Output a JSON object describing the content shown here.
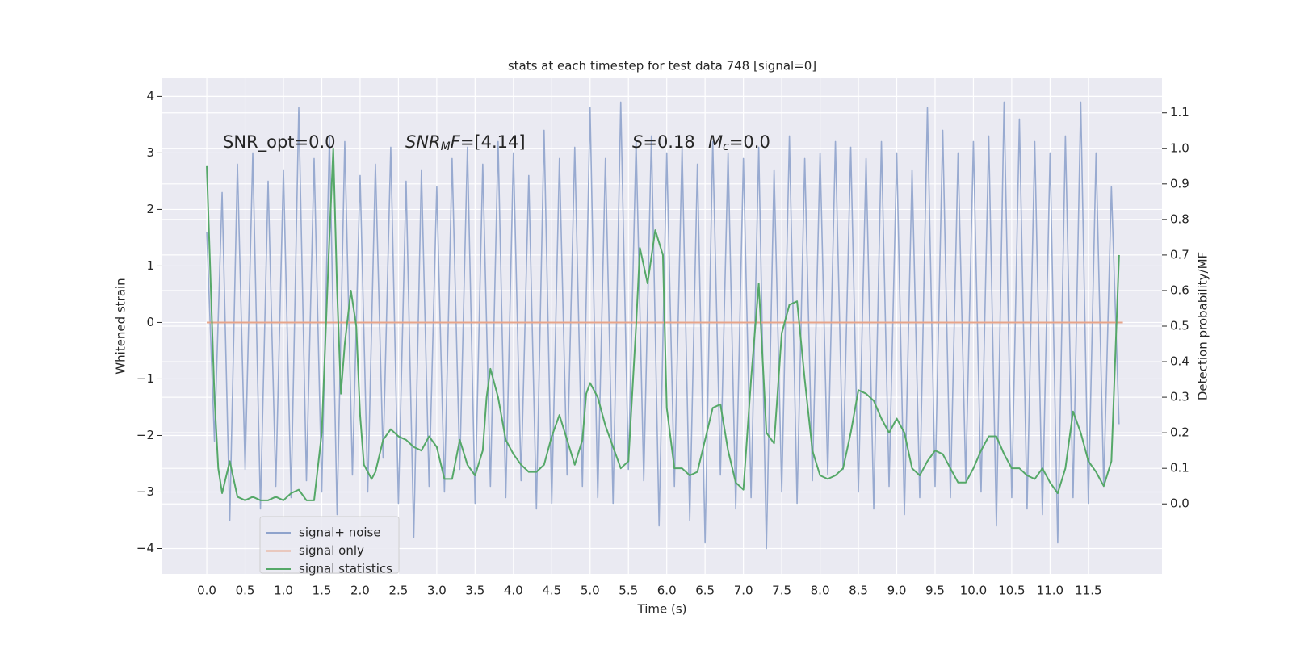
{
  "chart_data": {
    "type": "line",
    "title": "stats at each timestep for test data 748 [signal=0]",
    "x_label": "Time (s)",
    "y_label": "Whitened strain",
    "y2_label": "Detection probability/MF",
    "annotations": [
      [
        {
          "text": "SNR_opt=0.0",
          "style": "normal"
        }
      ],
      [
        {
          "text": "SNR",
          "style": "italic"
        },
        {
          "text": "M",
          "style": "sub"
        },
        {
          "text": "F",
          "style": "italic"
        },
        {
          "text": "=[4.14]",
          "style": "normal"
        }
      ],
      [
        {
          "text": "S",
          "style": "italic"
        },
        {
          "text": "=0.18",
          "style": "normal"
        }
      ],
      [
        {
          "text": "M",
          "style": "italic"
        },
        {
          "text": "c",
          "style": "sub"
        },
        {
          "text": "=0.0",
          "style": "normal"
        }
      ]
    ],
    "xlim": [
      -0.58,
      12.46
    ],
    "ylim": [
      -4.45,
      4.32
    ],
    "y2lim": [
      -0.197,
      1.197
    ],
    "grid": true,
    "legend": "lower left",
    "xticks": [
      {
        "value": 0,
        "label": "0.0"
      },
      {
        "value": 0.5,
        "label": "0.5"
      },
      {
        "value": 1,
        "label": "1.0"
      },
      {
        "value": 1.5,
        "label": "1.5"
      },
      {
        "value": 2,
        "label": "2.0"
      },
      {
        "value": 2.5,
        "label": "2.5"
      },
      {
        "value": 3,
        "label": "3.0"
      },
      {
        "value": 3.5,
        "label": "3.5"
      },
      {
        "value": 4,
        "label": "4.0"
      },
      {
        "value": 4.5,
        "label": "4.5"
      },
      {
        "value": 5,
        "label": "5.0"
      },
      {
        "value": 5.5,
        "label": "5.5"
      },
      {
        "value": 6,
        "label": "6.0"
      },
      {
        "value": 6.5,
        "label": "6.5"
      },
      {
        "value": 7,
        "label": "7.0"
      },
      {
        "value": 7.5,
        "label": "7.5"
      },
      {
        "value": 8,
        "label": "8.0"
      },
      {
        "value": 8.5,
        "label": "8.5"
      },
      {
        "value": 9,
        "label": "9.0"
      },
      {
        "value": 9.5,
        "label": "9.5"
      },
      {
        "value": 10,
        "label": "10.0"
      },
      {
        "value": 10.5,
        "label": "10.5"
      },
      {
        "value": 11,
        "label": "11.0"
      },
      {
        "value": 11.5,
        "label": "11.5"
      }
    ],
    "yticks": [
      {
        "value": -4,
        "label": "−4"
      },
      {
        "value": -3,
        "label": "−3"
      },
      {
        "value": -2,
        "label": "−2"
      },
      {
        "value": -1,
        "label": "−1"
      },
      0,
      1,
      2,
      3,
      4
    ],
    "y2ticks": [
      {
        "value": 0,
        "label": "0.0"
      },
      {
        "value": 0.1,
        "label": "0.1"
      },
      {
        "value": 0.2,
        "label": "0.2"
      },
      {
        "value": 0.3,
        "label": "0.3"
      },
      {
        "value": 0.4,
        "label": "0.4"
      },
      {
        "value": 0.5,
        "label": "0.5"
      },
      {
        "value": 0.6,
        "label": "0.6"
      },
      {
        "value": 0.7,
        "label": "0.7"
      },
      {
        "value": 0.8,
        "label": "0.8"
      },
      {
        "value": 0.9,
        "label": "0.9"
      },
      {
        "value": 1,
        "label": "1.0"
      },
      {
        "value": 1.1,
        "label": "1.1"
      }
    ],
    "series": [
      {
        "name": "signal+ noise",
        "color": "#8fa3cc",
        "x": [
          0,
          0.1,
          0.2,
          0.3,
          0.4,
          0.5,
          0.6,
          0.7,
          0.8,
          0.9,
          1,
          1.1,
          1.2,
          1.3,
          1.4,
          1.5,
          1.6,
          1.7,
          1.8,
          1.9,
          2,
          2.1,
          2.2,
          2.3,
          2.4,
          2.5,
          2.6,
          2.7,
          2.8,
          2.9,
          3,
          3.1,
          3.2,
          3.3,
          3.4,
          3.5,
          3.6,
          3.7,
          3.8,
          3.9,
          4,
          4.1,
          4.2,
          4.3,
          4.4,
          4.5,
          4.6,
          4.7,
          4.8,
          4.9,
          5,
          5.1,
          5.2,
          5.3,
          5.4,
          5.5,
          5.6,
          5.7,
          5.8,
          5.9,
          6,
          6.1,
          6.2,
          6.3,
          6.4,
          6.5,
          6.6,
          6.7,
          6.8,
          6.9,
          7,
          7.1,
          7.2,
          7.3,
          7.4,
          7.5,
          7.6,
          7.7,
          7.8,
          7.9,
          8,
          8.1,
          8.2,
          8.3,
          8.4,
          8.5,
          8.6,
          8.7,
          8.8,
          8.9,
          9,
          9.1,
          9.2,
          9.3,
          9.4,
          9.5,
          9.6,
          9.7,
          9.8,
          9.9,
          10,
          10.1,
          10.2,
          10.3,
          10.4,
          10.5,
          10.6,
          10.7,
          10.8,
          10.9,
          11,
          11.1,
          11.2,
          11.3,
          11.4,
          11.5,
          11.6,
          11.7,
          11.8,
          11.9
        ],
        "values": [
          1.6,
          -2.1,
          2.3,
          -3.5,
          2.8,
          -2.6,
          3.0,
          -3.3,
          2.5,
          -2.9,
          2.7,
          -3.1,
          3.8,
          -2.8,
          2.9,
          -3.0,
          3.3,
          -3.4,
          3.2,
          -2.7,
          2.6,
          -3.0,
          2.8,
          -2.4,
          3.1,
          -3.2,
          2.5,
          -3.8,
          2.7,
          -2.9,
          2.4,
          -3.0,
          2.9,
          -2.6,
          3.1,
          -3.2,
          2.8,
          -2.9,
          3.2,
          -3.1,
          3.0,
          -2.8,
          2.6,
          -3.3,
          3.4,
          -3.2,
          2.9,
          -2.7,
          3.1,
          -2.9,
          3.8,
          -3.1,
          2.9,
          -3.2,
          3.9,
          -2.6,
          3.2,
          -2.8,
          3.3,
          -3.6,
          3.0,
          -2.9,
          3.1,
          -3.5,
          2.8,
          -3.9,
          3.2,
          -2.7,
          3.0,
          -3.3,
          2.9,
          -3.1,
          3.1,
          -4.0,
          2.7,
          -3.0,
          3.3,
          -3.2,
          2.9,
          -2.8,
          3.0,
          -2.7,
          3.2,
          -2.6,
          3.1,
          -3.0,
          2.9,
          -3.3,
          3.2,
          -2.9,
          3.0,
          -3.4,
          2.7,
          -3.1,
          3.8,
          -2.9,
          3.4,
          -3.1,
          3.0,
          -2.8,
          3.2,
          -3.0,
          3.3,
          -3.6,
          3.9,
          -3.1,
          3.6,
          -3.3,
          3.2,
          -3.4,
          3.0,
          -3.9,
          3.3,
          -3.1,
          3.9,
          -3.2,
          3.0,
          -2.9,
          2.4,
          -1.8
        ]
      },
      {
        "name": "signal only",
        "color": "#e8a58a",
        "x": [
          0,
          11.95
        ],
        "values": [
          0,
          0
        ]
      },
      {
        "name": "signal statistics",
        "color": "#55a868",
        "axis": "y2",
        "x": [
          0,
          0.1,
          0.15,
          0.2,
          0.3,
          0.4,
          0.5,
          0.6,
          0.7,
          0.8,
          0.9,
          1,
          1.1,
          1.2,
          1.3,
          1.4,
          1.5,
          1.6,
          1.65,
          1.7,
          1.75,
          1.8,
          1.88,
          1.95,
          2,
          2.05,
          2.15,
          2.2,
          2.3,
          2.4,
          2.5,
          2.6,
          2.7,
          2.8,
          2.9,
          3,
          3.1,
          3.2,
          3.3,
          3.4,
          3.5,
          3.6,
          3.65,
          3.7,
          3.8,
          3.9,
          4,
          4.1,
          4.2,
          4.3,
          4.4,
          4.5,
          4.6,
          4.7,
          4.8,
          4.9,
          4.95,
          5,
          5.1,
          5.2,
          5.3,
          5.4,
          5.5,
          5.6,
          5.65,
          5.75,
          5.85,
          5.95,
          6,
          6.1,
          6.2,
          6.3,
          6.4,
          6.5,
          6.6,
          6.7,
          6.8,
          6.9,
          7,
          7.1,
          7.2,
          7.3,
          7.4,
          7.5,
          7.6,
          7.7,
          7.8,
          7.9,
          8,
          8.1,
          8.2,
          8.3,
          8.4,
          8.5,
          8.6,
          8.7,
          8.8,
          8.9,
          9,
          9.1,
          9.2,
          9.3,
          9.4,
          9.5,
          9.6,
          9.7,
          9.8,
          9.9,
          10,
          10.1,
          10.2,
          10.3,
          10.4,
          10.5,
          10.6,
          10.7,
          10.8,
          10.9,
          11,
          11.1,
          11.2,
          11.3,
          11.4,
          11.5,
          11.6,
          11.7,
          11.8,
          11.9
        ],
        "values": [
          0.95,
          0.3,
          0.1,
          0.03,
          0.12,
          0.02,
          0.01,
          0.02,
          0.01,
          0.01,
          0.02,
          0.01,
          0.03,
          0.04,
          0.01,
          0.01,
          0.2,
          0.75,
          1.0,
          0.6,
          0.31,
          0.45,
          0.6,
          0.5,
          0.25,
          0.11,
          0.07,
          0.09,
          0.18,
          0.21,
          0.19,
          0.18,
          0.16,
          0.15,
          0.19,
          0.16,
          0.07,
          0.07,
          0.18,
          0.11,
          0.08,
          0.15,
          0.3,
          0.38,
          0.3,
          0.18,
          0.14,
          0.11,
          0.09,
          0.09,
          0.11,
          0.19,
          0.25,
          0.18,
          0.11,
          0.18,
          0.31,
          0.34,
          0.3,
          0.22,
          0.16,
          0.1,
          0.12,
          0.5,
          0.72,
          0.62,
          0.77,
          0.7,
          0.27,
          0.1,
          0.1,
          0.08,
          0.09,
          0.18,
          0.27,
          0.28,
          0.15,
          0.06,
          0.04,
          0.35,
          0.62,
          0.2,
          0.17,
          0.48,
          0.56,
          0.57,
          0.35,
          0.15,
          0.08,
          0.07,
          0.08,
          0.1,
          0.2,
          0.32,
          0.31,
          0.29,
          0.24,
          0.2,
          0.24,
          0.2,
          0.1,
          0.08,
          0.12,
          0.15,
          0.14,
          0.1,
          0.06,
          0.06,
          0.1,
          0.15,
          0.19,
          0.19,
          0.14,
          0.1,
          0.1,
          0.08,
          0.07,
          0.1,
          0.06,
          0.03,
          0.1,
          0.26,
          0.2,
          0.12,
          0.09,
          0.05,
          0.12,
          0.7
        ]
      }
    ]
  }
}
